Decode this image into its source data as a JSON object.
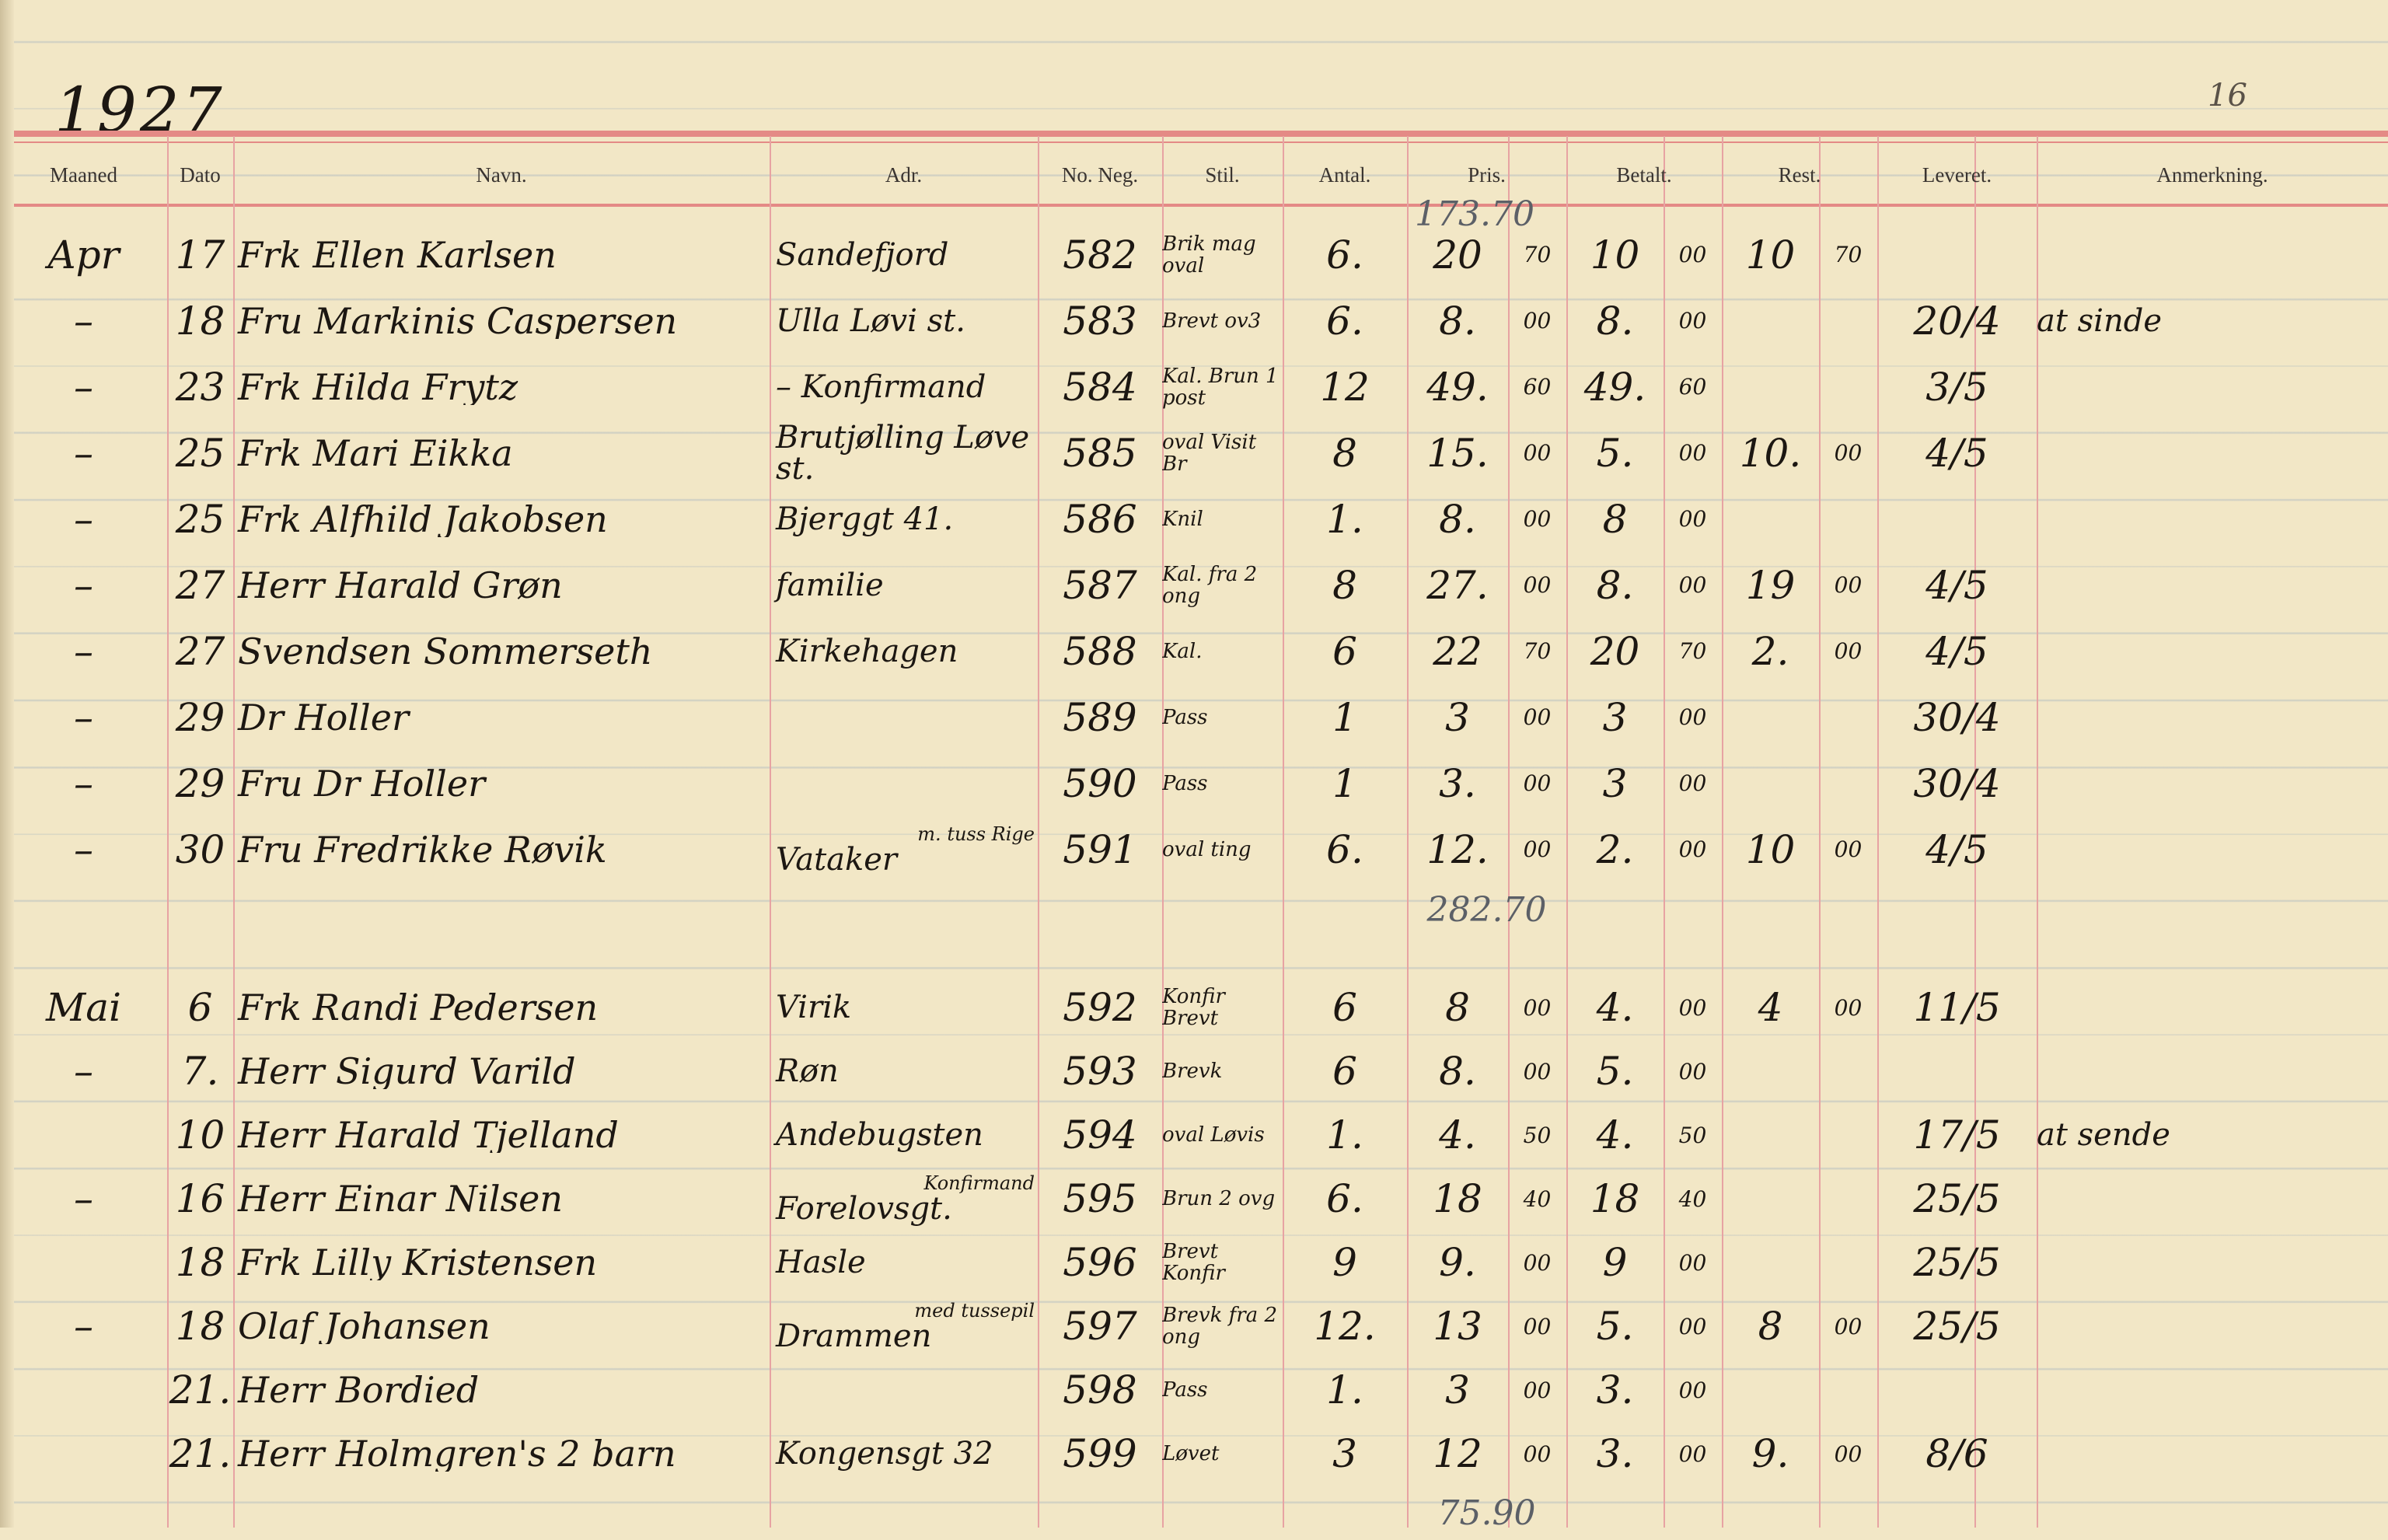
{
  "ledger": {
    "year": "1927",
    "corner_mark": "16",
    "top_pencil_note": "173.70",
    "columns": [
      "Maaned",
      "Dato",
      "Navn.",
      "Adr.",
      "No. Neg.",
      "Stil.",
      "Antal.",
      "Pris.",
      "Betalt.",
      "Rest.",
      "Leveret.",
      "Anmerkning."
    ],
    "april": [
      {
        "month": "Apr",
        "date": "17",
        "name": "Frk Ellen Karlsen",
        "address": "Sandefjord",
        "neg": "582",
        "style": "Brik mag oval",
        "count": "6.",
        "price_kr": "20",
        "price_ore": "70",
        "paid_kr": "10",
        "paid_ore": "00",
        "rest_kr": "10",
        "rest_ore": "70",
        "delivered": "",
        "remark": ""
      },
      {
        "month": "–",
        "date": "18",
        "name": "Fru Markinis Caspersen",
        "address": "Ulla Løvi st.",
        "neg": "583",
        "style": "Brevt ov3",
        "count": "6.",
        "price_kr": "8.",
        "price_ore": "00",
        "paid_kr": "8.",
        "paid_ore": "00",
        "rest_kr": "",
        "rest_ore": "",
        "delivered": "20/4",
        "remark": "at sinde"
      },
      {
        "month": "–",
        "date": "23",
        "name": "Frk Hilda Frytz",
        "address": "– Konfirmand",
        "neg": "584",
        "style": "Kal. Brun 1 post",
        "count": "12",
        "price_kr": "49.",
        "price_ore": "60",
        "paid_kr": "49.",
        "paid_ore": "60",
        "rest_kr": "",
        "rest_ore": "",
        "delivered": "3/5",
        "remark": ""
      },
      {
        "month": "–",
        "date": "25",
        "name": "Frk Mari Eikka",
        "address": "Brutjølling Løve st.",
        "neg": "585",
        "style": "oval Visit Br",
        "count": "8",
        "price_kr": "15.",
        "price_ore": "00",
        "paid_kr": "5.",
        "paid_ore": "00",
        "rest_kr": "10.",
        "rest_ore": "00",
        "delivered": "4/5",
        "remark": ""
      },
      {
        "month": "–",
        "date": "25",
        "name": "Frk Alfhild Jakobsen",
        "address": "Bjerggt 41.",
        "neg": "586",
        "style": "Knil",
        "count": "1.",
        "price_kr": "8.",
        "price_ore": "00",
        "paid_kr": "8",
        "paid_ore": "00",
        "rest_kr": "",
        "rest_ore": "",
        "delivered": "",
        "remark": ""
      },
      {
        "month": "–",
        "date": "27",
        "name": "Herr Harald Grøn",
        "address": "familie",
        "neg": "587",
        "style": "Kal. fra 2 ong",
        "count": "8",
        "price_kr": "27.",
        "price_ore": "00",
        "paid_kr": "8.",
        "paid_ore": "00",
        "rest_kr": "19",
        "rest_ore": "00",
        "delivered": "4/5",
        "remark": ""
      },
      {
        "month": "–",
        "date": "27",
        "name": "Svendsen Sommerseth",
        "address": "Kirkehagen",
        "neg": "588",
        "style": "Kal.",
        "count": "6",
        "price_kr": "22",
        "price_ore": "70",
        "paid_kr": "20",
        "paid_ore": "70",
        "rest_kr": "2.",
        "rest_ore": "00",
        "delivered": "4/5",
        "remark": ""
      },
      {
        "month": "–",
        "date": "29",
        "name": "Dr Holler",
        "address": "",
        "neg": "589",
        "style": "Pass",
        "count": "1",
        "price_kr": "3",
        "price_ore": "00",
        "paid_kr": "3",
        "paid_ore": "00",
        "rest_kr": "",
        "rest_ore": "",
        "delivered": "30/4",
        "remark": ""
      },
      {
        "month": "–",
        "date": "29",
        "name": "Fru Dr Holler",
        "address": "",
        "neg": "590",
        "style": "Pass",
        "count": "1",
        "price_kr": "3.",
        "price_ore": "00",
        "paid_kr": "3",
        "paid_ore": "00",
        "rest_kr": "",
        "rest_ore": "",
        "delivered": "30/4",
        "remark": ""
      },
      {
        "month": "–",
        "date": "30",
        "name": "Fru Fredrikke Røvik",
        "address": "Vataker",
        "address_note": "m. tuss Rige",
        "neg": "591",
        "style": "oval ting",
        "count": "6.",
        "price_kr": "12.",
        "price_ore": "00",
        "paid_kr": "2.",
        "paid_ore": "00",
        "rest_kr": "10",
        "rest_ore": "00",
        "delivered": "4/5",
        "remark": ""
      }
    ],
    "april_total": "282.70",
    "may": [
      {
        "month": "Mai",
        "date": "6",
        "name": "Frk Randi Pedersen",
        "address": "Virik",
        "neg": "592",
        "style": "Konfir Brevt",
        "count": "6",
        "price_kr": "8",
        "price_ore": "00",
        "paid_kr": "4.",
        "paid_ore": "00",
        "rest_kr": "4",
        "rest_ore": "00",
        "delivered": "11/5",
        "remark": ""
      },
      {
        "month": "–",
        "date": "7.",
        "name": "Herr Sigurd Varild",
        "address": "Røn",
        "neg": "593",
        "style": "Brevk",
        "count": "6",
        "price_kr": "8.",
        "price_ore": "00",
        "paid_kr": "5.",
        "paid_ore": "00",
        "rest_kr": "",
        "rest_ore": "",
        "delivered": "",
        "remark": ""
      },
      {
        "month": "",
        "date": "10",
        "name": "Herr Harald Tjelland",
        "address": "Andebugsten",
        "neg": "594",
        "style": "oval Løvis",
        "count": "1.",
        "price_kr": "4.",
        "price_ore": "50",
        "paid_kr": "4.",
        "paid_ore": "50",
        "rest_kr": "",
        "rest_ore": "",
        "delivered": "17/5",
        "remark": "at sende"
      },
      {
        "month": "–",
        "date": "16",
        "name": "Herr Einar Nilsen",
        "address": "Forelovsgt.",
        "address_note": "Konfirmand",
        "neg": "595",
        "style": "Brun 2 ovg",
        "count": "6.",
        "price_kr": "18",
        "price_ore": "40",
        "paid_kr": "18",
        "paid_ore": "40",
        "rest_kr": "",
        "rest_ore": "",
        "delivered": "25/5",
        "remark": ""
      },
      {
        "month": "",
        "date": "18",
        "name": "Frk Lilly Kristensen",
        "address": "Hasle",
        "neg": "596",
        "style": "Brevt Konfir",
        "count": "9",
        "price_kr": "9.",
        "price_ore": "00",
        "paid_kr": "9",
        "paid_ore": "00",
        "rest_kr": "",
        "rest_ore": "",
        "delivered": "25/5",
        "remark": ""
      },
      {
        "month": "–",
        "date": "18",
        "name": "Olaf Johansen",
        "address": "Drammen",
        "address_note": "med tussepil",
        "neg": "597",
        "style": "Brevk fra 2 ong",
        "count": "12.",
        "price_kr": "13",
        "price_ore": "00",
        "paid_kr": "5.",
        "paid_ore": "00",
        "rest_kr": "8",
        "rest_ore": "00",
        "delivered": "25/5",
        "remark": ""
      },
      {
        "month": "",
        "date": "21.",
        "name": "Herr Bordied",
        "address": "",
        "neg": "598",
        "style": "Pass",
        "count": "1.",
        "price_kr": "3",
        "price_ore": "00",
        "paid_kr": "3.",
        "paid_ore": "00",
        "rest_kr": "",
        "rest_ore": "",
        "delivered": "",
        "remark": ""
      },
      {
        "month": "",
        "date": "21.",
        "name": "Herr Holmgren's 2 barn",
        "address": "Kongensgt 32",
        "neg": "599",
        "style": "Løvet",
        "count": "3",
        "price_kr": "12",
        "price_ore": "00",
        "paid_kr": "3.",
        "paid_ore": "00",
        "rest_kr": "9.",
        "rest_ore": "00",
        "delivered": "8/6",
        "remark": ""
      }
    ],
    "may_total": "75.90"
  }
}
